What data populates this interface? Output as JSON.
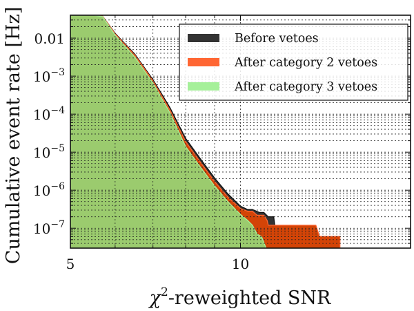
{
  "chart_data": {
    "type": "area",
    "title": "",
    "xlabel": "χ²-reweighted SNR",
    "xlabel_main": "-reweighted SNR",
    "xlabel_symbol": "χ",
    "xlabel_sup": "2",
    "ylabel": "Cumulative event rate [Hz]",
    "xscale": "log",
    "yscale": "log",
    "xlim": [
      5,
      20
    ],
    "ylim": [
      3e-08,
      0.04
    ],
    "grid": true,
    "legend_position": "top-right",
    "x_ticks": [
      {
        "value": 5,
        "label": "5"
      },
      {
        "value": 10,
        "label": "10"
      }
    ],
    "y_ticks": [
      {
        "value": 0.01,
        "label": "0.01",
        "base": "",
        "exp": ""
      },
      {
        "value": 0.001,
        "label": "10^-3",
        "base": "10",
        "exp": "−3"
      },
      {
        "value": 0.0001,
        "label": "10^-4",
        "base": "10",
        "exp": "−4"
      },
      {
        "value": 1e-05,
        "label": "10^-5",
        "base": "10",
        "exp": "−5"
      },
      {
        "value": 1e-06,
        "label": "10^-6",
        "base": "10",
        "exp": "−6"
      },
      {
        "value": 1e-07,
        "label": "10^-7",
        "base": "10",
        "exp": "−7"
      }
    ],
    "series": [
      {
        "name": "Before vetoes",
        "color": "#333333",
        "edge": "#111111",
        "x": [
          5.0,
          5.5,
          5.7,
          6.0,
          6.5,
          7.0,
          7.5,
          8.0,
          8.5,
          9.0,
          9.5,
          10.0,
          10.3,
          10.5,
          10.8,
          11.0,
          11.2,
          11.45,
          11.5
        ],
        "y": [
          0.04,
          0.04,
          0.038,
          0.0134,
          0.0038,
          0.00081,
          0.00015,
          2.3e-05,
          6.6e-06,
          2.1e-06,
          8e-07,
          3.8e-07,
          3.1e-07,
          3.1e-07,
          2.6e-07,
          2.6e-07,
          2e-07,
          2e-07,
          1.2e-07
        ]
      },
      {
        "name": "After category 2 vetoes",
        "color": "#D34407",
        "edge": "#FF6633",
        "x": [
          5.0,
          5.5,
          5.7,
          6.0,
          6.5,
          7.0,
          7.5,
          8.0,
          8.5,
          9.0,
          9.5,
          10.0,
          10.3,
          10.5,
          10.7,
          11.0,
          11.15,
          11.2,
          13.6,
          13.8,
          15.0
        ],
        "y": [
          0.04,
          0.04,
          0.038,
          0.013,
          0.0036,
          0.00075,
          0.00013,
          1.9e-05,
          5.4e-06,
          1.7e-06,
          6.6e-07,
          3.3e-07,
          2.8e-07,
          2.8e-07,
          2.2e-07,
          2.2e-07,
          1.6e-07,
          1.2e-07,
          1.2e-07,
          6.1e-08,
          6.1e-08
        ]
      },
      {
        "name": "After category 3 vetoes",
        "color": "#9BCB6E",
        "edge": "#A6F09A",
        "x": [
          5.0,
          5.5,
          5.7,
          6.0,
          6.5,
          7.0,
          7.5,
          8.0,
          8.5,
          9.0,
          9.5,
          10.0,
          10.3,
          10.5,
          10.7,
          10.9,
          11.1
        ],
        "y": [
          0.04,
          0.04,
          0.037,
          0.012,
          0.0032,
          0.00066,
          0.00011,
          1.4e-05,
          4e-06,
          1.3e-06,
          5e-07,
          2.3e-07,
          1.6e-07,
          1.2e-07,
          7e-08,
          6e-08,
          3e-08
        ]
      }
    ]
  }
}
